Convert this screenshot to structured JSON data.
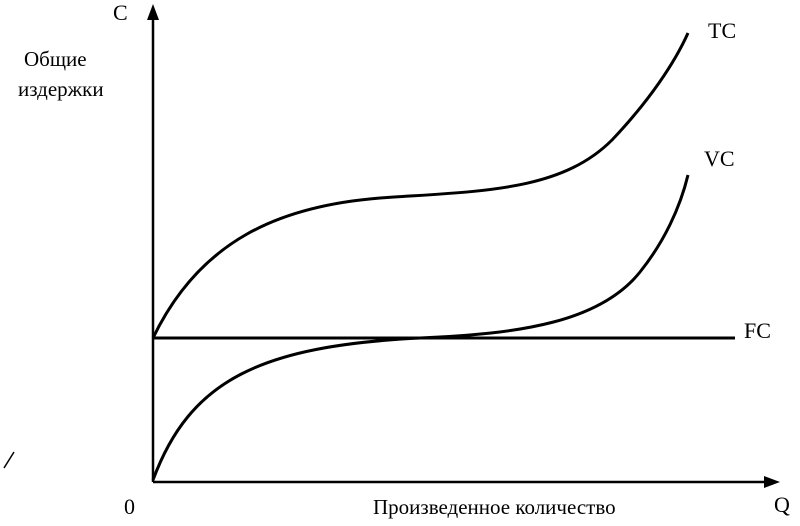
{
  "axes": {
    "y_label": "C",
    "y_title": [
      "Общие",
      "издержки"
    ],
    "origin": "0",
    "x_title": "Произведенное количество",
    "x_label": "Q"
  },
  "curves": {
    "tc": "TC",
    "vc": "VC",
    "fc": "FC"
  }
}
